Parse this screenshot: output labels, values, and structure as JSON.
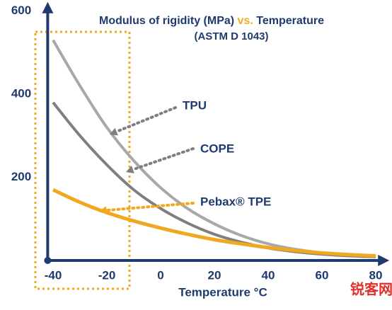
{
  "chart_data": {
    "type": "line",
    "title": {
      "part1": "Modulus of rigidity (MPa)",
      "part2": "vs.",
      "part3": "Temperature"
    },
    "subtitle": "(ASTM D 1043)",
    "x_label": "Temperature °C",
    "x": [
      -40,
      -30,
      -20,
      -10,
      0,
      10,
      20,
      30,
      40,
      50,
      60,
      70,
      80
    ],
    "series": [
      {
        "name": "TPU",
        "color": "#a8a8a8",
        "values": [
          530,
          420,
          320,
          240,
          175,
          125,
          88,
          60,
          40,
          27,
          18,
          13,
          10
        ]
      },
      {
        "name": "COPE",
        "color": "#7f7f7f",
        "values": [
          380,
          300,
          230,
          170,
          125,
          90,
          63,
          44,
          30,
          21,
          15,
          11,
          9
        ]
      },
      {
        "name": "Pebax® TPE",
        "color": "#f0a820",
        "values": [
          170,
          140,
          115,
          95,
          78,
          63,
          50,
          40,
          31,
          24,
          18,
          14,
          11
        ]
      }
    ],
    "xlim": [
      -42,
      84
    ],
    "ylim": [
      0,
      615
    ],
    "xticks": [
      -40,
      -20,
      0,
      20,
      40,
      60,
      80
    ],
    "yticks": [
      200,
      400,
      600
    ],
    "watermark": "锐客网"
  }
}
